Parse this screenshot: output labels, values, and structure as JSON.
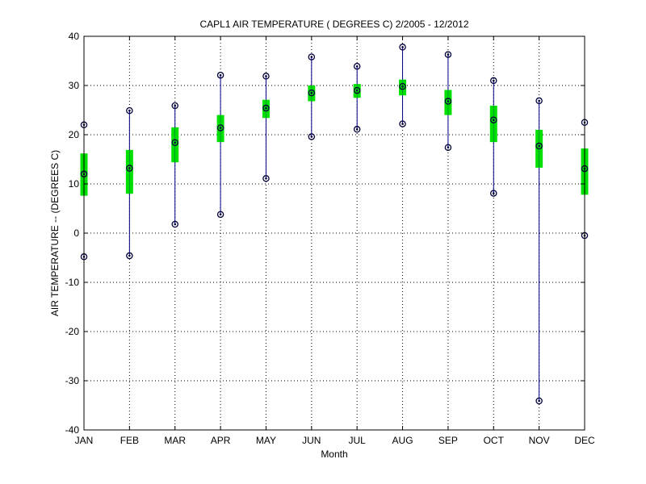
{
  "chart_data": {
    "type": "box",
    "title": "CAPL1  AIR TEMPERATURE ( DEGREES C) 2/2005 - 12/2012",
    "xlabel": "Month",
    "ylabel": "AIR TEMPERATURE -- (DEGREES C)",
    "categories": [
      "JAN",
      "FEB",
      "MAR",
      "APR",
      "MAY",
      "JUN",
      "JUL",
      "AUG",
      "SEP",
      "OCT",
      "NOV",
      "DEC"
    ],
    "ylim": [
      -40,
      40
    ],
    "yticks": [
      -40,
      -30,
      -20,
      -10,
      0,
      10,
      20,
      30,
      40
    ],
    "grid": true,
    "series": {
      "min": [
        -4.8,
        -4.6,
        1.8,
        3.8,
        11.1,
        19.6,
        21.1,
        22.2,
        17.4,
        8.1,
        -34.1,
        -0.5
      ],
      "q1": [
        7.6,
        8.0,
        14.4,
        18.5,
        23.4,
        26.8,
        27.5,
        28.0,
        24.0,
        18.5,
        13.3,
        7.8
      ],
      "median": [
        12.0,
        13.2,
        18.4,
        21.4,
        25.4,
        28.5,
        29.0,
        29.8,
        26.8,
        23.0,
        17.7,
        13.1
      ],
      "q3": [
        16.2,
        16.9,
        21.5,
        24.0,
        27.1,
        30.0,
        30.3,
        31.2,
        29.1,
        25.9,
        21.0,
        17.2
      ],
      "max": [
        22.0,
        24.9,
        25.9,
        32.1,
        31.9,
        35.8,
        33.9,
        37.8,
        36.3,
        31.0,
        26.9,
        22.5
      ]
    },
    "colors": {
      "box": "#00e000",
      "whisker": "#00008b",
      "marker": "#00003a",
      "grid": "#000000",
      "axis": "#000000"
    }
  }
}
